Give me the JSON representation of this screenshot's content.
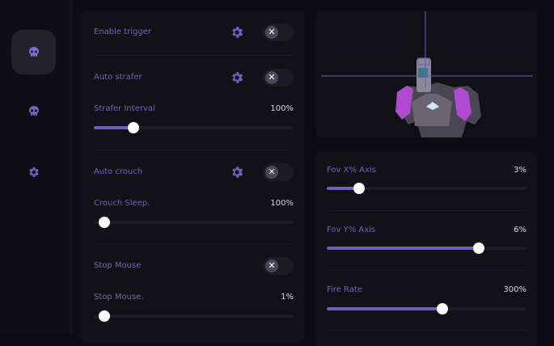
{
  "sidebar": {
    "items": [
      {
        "icon": "skull-icon",
        "active": true
      },
      {
        "icon": "skull-icon",
        "active": false
      },
      {
        "icon": "gear-icon",
        "active": false
      }
    ]
  },
  "accent": "#6b61b8",
  "left_panel": {
    "toggles": [
      {
        "label": "Enable trigger",
        "has_settings": true,
        "enabled": false
      },
      {
        "label": "Auto strafer",
        "has_settings": true,
        "enabled": false
      },
      {
        "label": "Auto crouch",
        "has_settings": true,
        "enabled": false
      },
      {
        "label": "Stop Mouse",
        "has_settings": false,
        "enabled": false
      }
    ],
    "sliders": [
      {
        "label": "Strafer Interval",
        "value": "100%",
        "level": 0.2
      },
      {
        "label": "Crouch Sleep.",
        "value": "100%",
        "level": 0
      },
      {
        "label": "Stop Mouse.",
        "value": "1%",
        "level": 0
      }
    ]
  },
  "right_panel": {
    "sliders": [
      {
        "label": "Fov X% Axis",
        "value": "3%",
        "level": 0.16
      },
      {
        "label": "Fov Y% Axis",
        "value": "6%",
        "level": 0.76
      },
      {
        "label": "Fire Rate",
        "value": "300%",
        "level": 0.58
      }
    ]
  }
}
